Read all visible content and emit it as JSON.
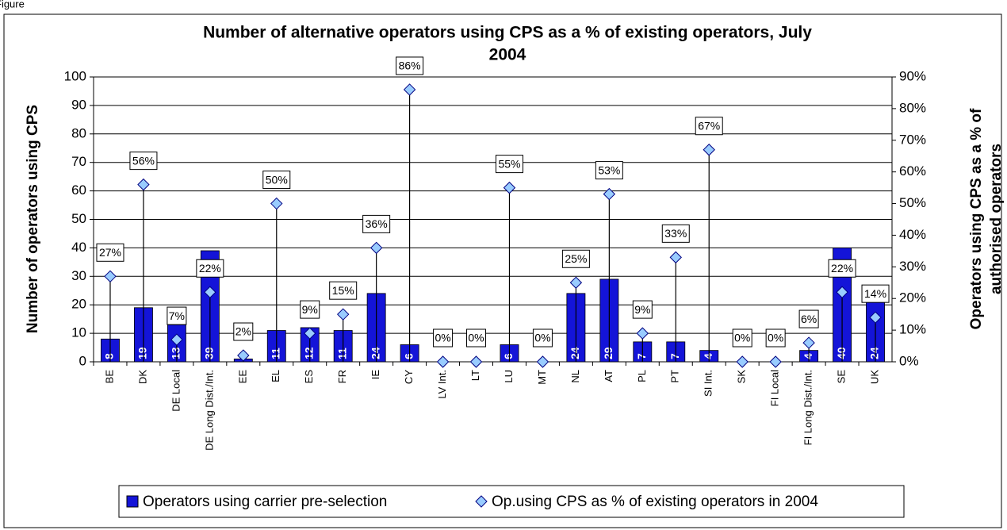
{
  "page_label": "Figure",
  "chart_data": {
    "type": "bar_line",
    "title": [
      "Number of alternative operators using CPS as a % of existing operators, July",
      "2004"
    ],
    "y_label": "Number of operators using CPS",
    "y2_label": [
      "Operators using CPS as a % of",
      "authorised operators"
    ],
    "categories": [
      "BE",
      "DK",
      "DE Local",
      "DE Long Dist./Int.",
      "EE",
      "EL",
      "ES",
      "FR",
      "IE",
      "CY",
      "LV Int.",
      "LT",
      "LU",
      "MT",
      "NL",
      "AT",
      "PL",
      "PT",
      "SI Int.",
      "SK",
      "FI Local",
      "FI Long Dist./Int.",
      "SE",
      "UK"
    ],
    "series": [
      {
        "name": "Operators using carrier pre-selection",
        "color": "#1414d8",
        "values": [
          8,
          19,
          13,
          39,
          1,
          11,
          12,
          11,
          24,
          6,
          null,
          null,
          6,
          null,
          24,
          29,
          7,
          7,
          4,
          null,
          null,
          4,
          40,
          24
        ],
        "value_labels": [
          "8",
          "19",
          "13",
          "39",
          null,
          "11",
          "12",
          "11",
          "24",
          "6",
          null,
          null,
          "6",
          null,
          "24",
          "29",
          "7",
          "7",
          "4",
          null,
          null,
          "4",
          "40",
          "24"
        ]
      },
      {
        "name": "Op.using CPS as % of existing operators in 2004",
        "color": "#99ccff",
        "axis": "y2",
        "values": [
          27,
          56,
          7,
          22,
          2,
          50,
          9,
          15,
          36,
          86,
          0,
          0,
          55,
          0,
          25,
          53,
          9,
          33,
          67,
          0,
          0,
          6,
          22,
          14
        ],
        "value_labels": [
          "27%",
          "56%",
          "7%",
          "22%",
          "2%",
          "50%",
          "9%",
          "15%",
          "36%",
          "86%",
          "0%",
          "0%",
          "55%",
          "0%",
          "25%",
          "53%",
          "9%",
          "33%",
          "67%",
          "0%",
          "0%",
          "6%",
          "22%",
          "14%"
        ]
      }
    ],
    "ylim": [
      0,
      100
    ],
    "yticks": [
      0,
      10,
      20,
      30,
      40,
      50,
      60,
      70,
      80,
      90,
      100
    ],
    "y2lim": [
      0,
      90
    ],
    "y2ticks": [
      {
        "value": 0,
        "label": "0%"
      },
      {
        "value": 10,
        "label": "10%"
      },
      {
        "value": 20,
        "label": "20%"
      },
      {
        "value": 30,
        "label": "30%"
      },
      {
        "value": 40,
        "label": "40%"
      },
      {
        "value": 50,
        "label": "50%"
      },
      {
        "value": 60,
        "label": "60%"
      },
      {
        "value": 70,
        "label": "70%"
      },
      {
        "value": 80,
        "label": "80%"
      },
      {
        "value": 90,
        "label": "90%"
      }
    ],
    "grid": true,
    "legend": "bottom"
  }
}
